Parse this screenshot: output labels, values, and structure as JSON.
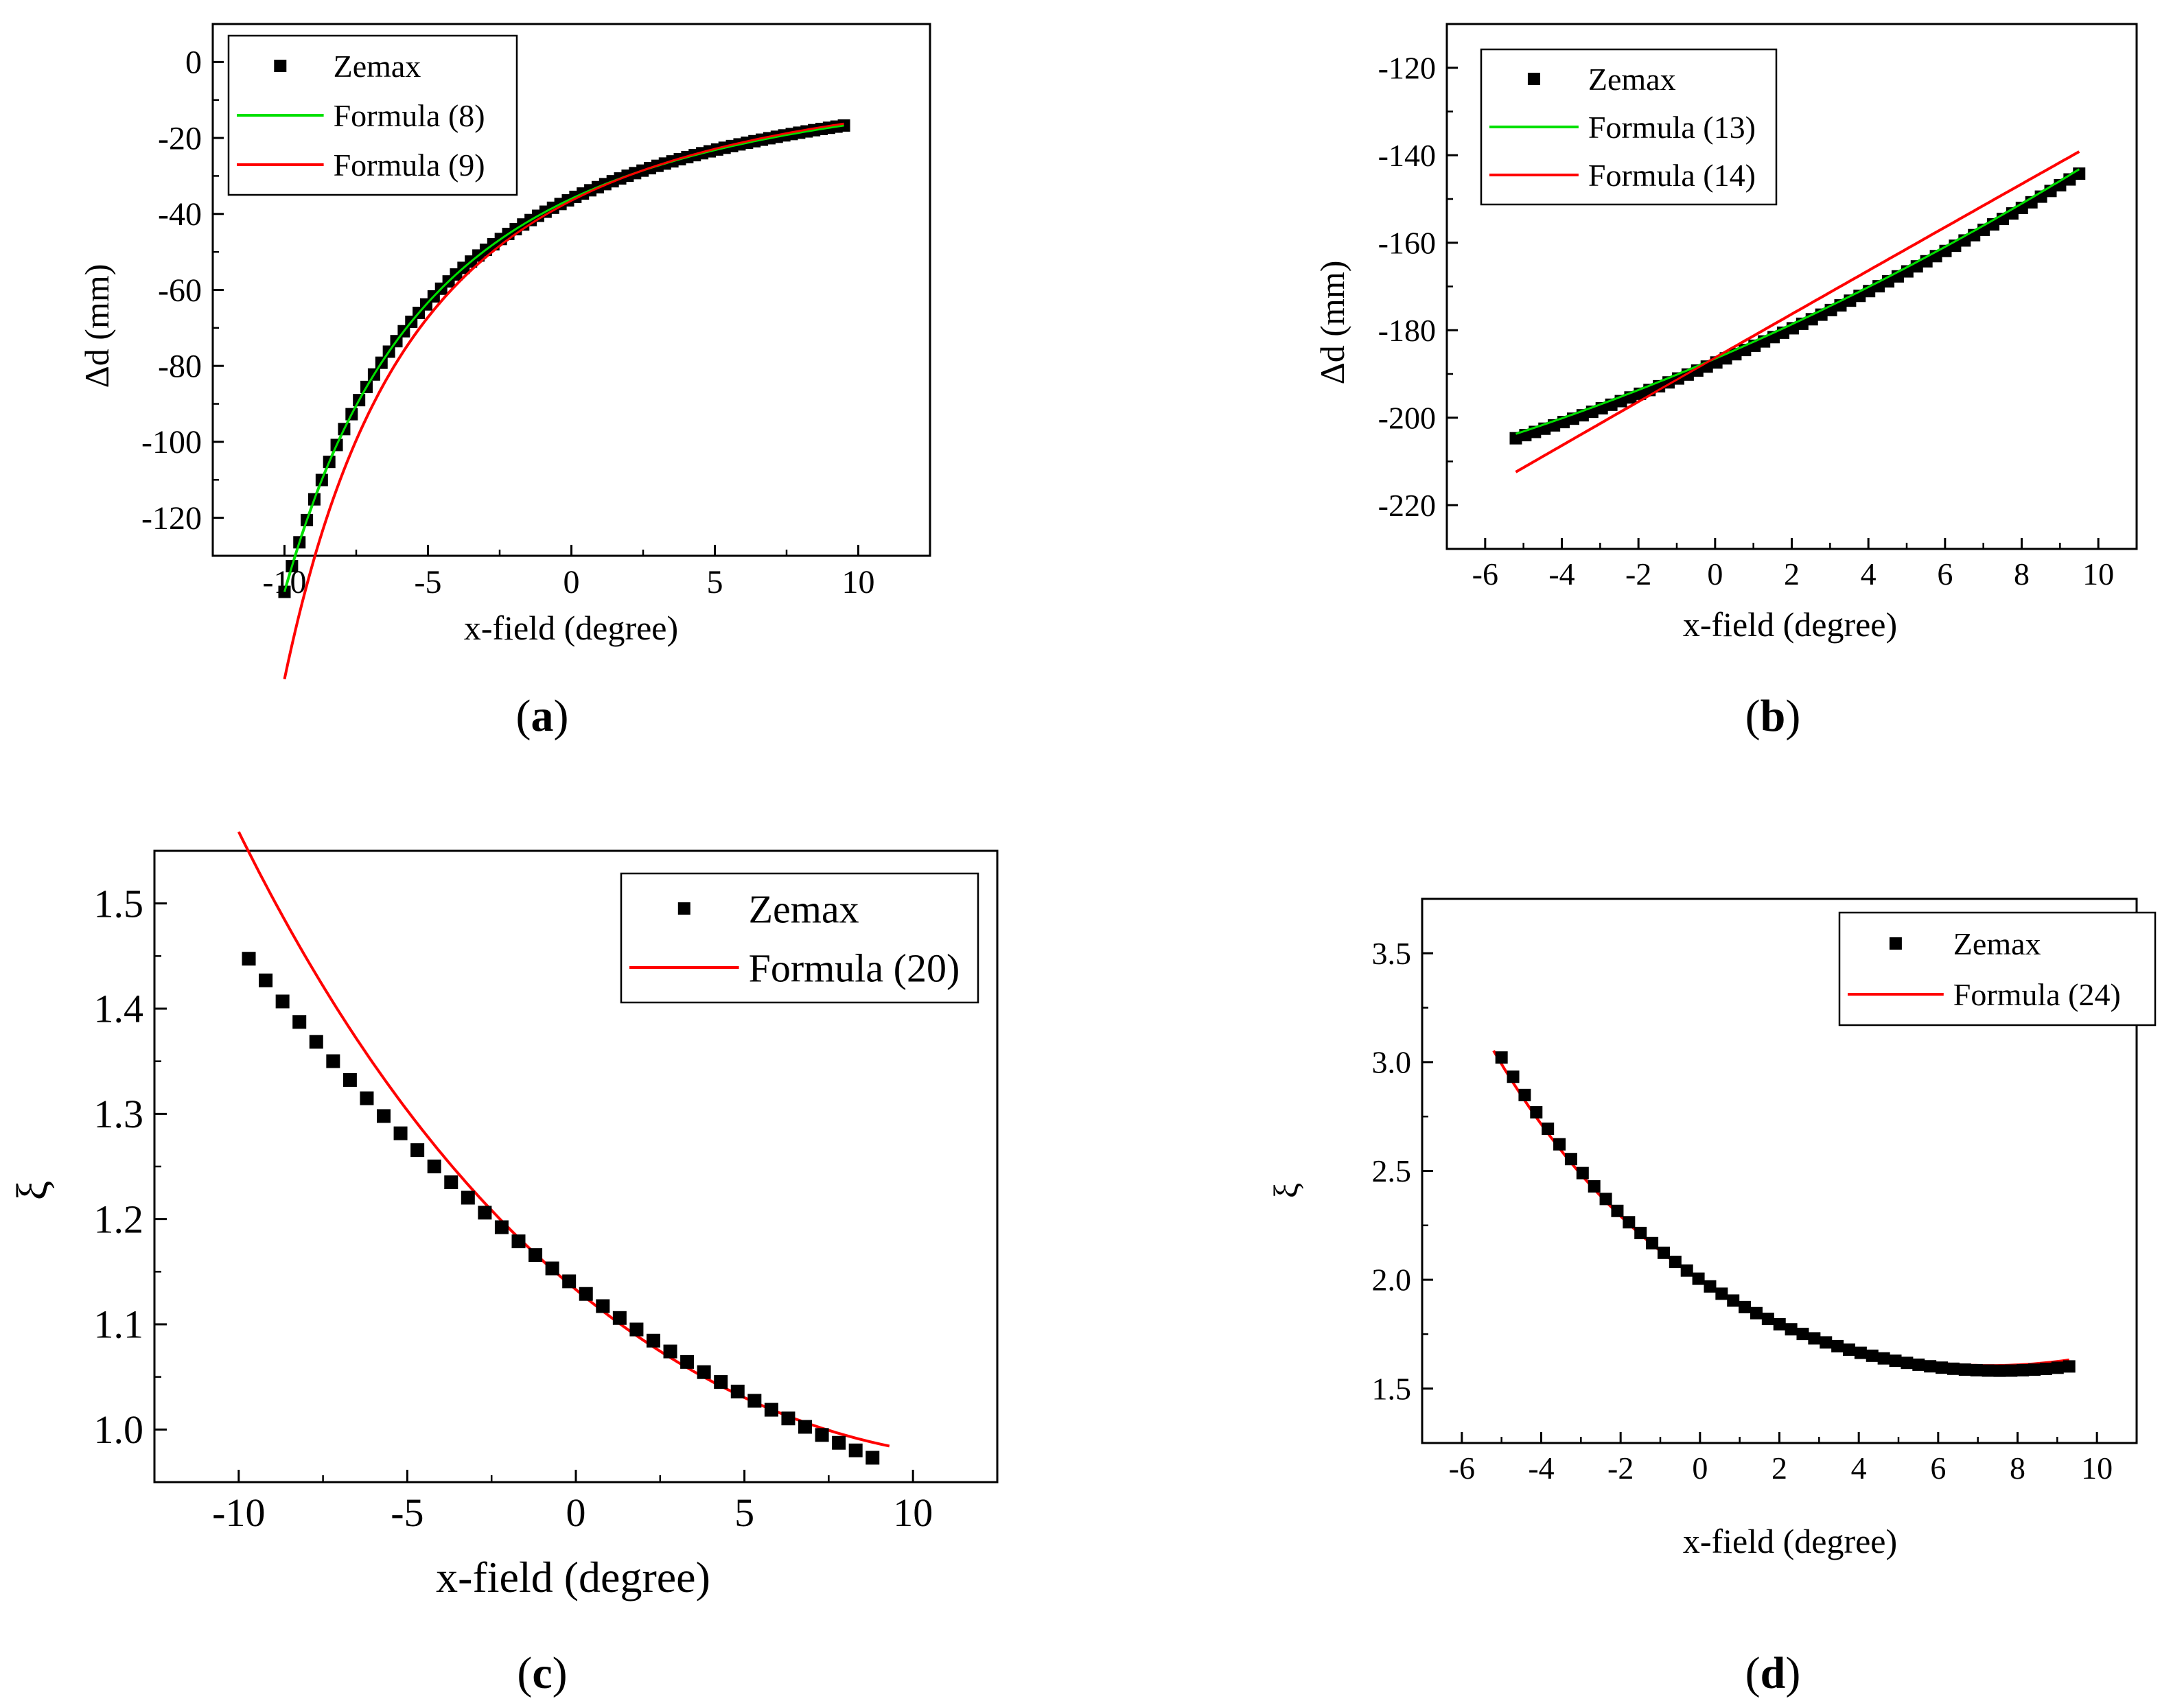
{
  "colors": {
    "zemax": "#000000",
    "green": "#00e000",
    "red": "#ff0000",
    "axis": "#000000"
  },
  "chart_data": [
    {
      "id": "a",
      "type": "scatter+line",
      "panel_label": "a",
      "xlabel": "x-field (degree)",
      "ylabel": "Δd (mm)",
      "xlim": [
        -12.5,
        12.5
      ],
      "ylim": [
        -130,
        10
      ],
      "xticks": [
        -10,
        -5,
        0,
        5,
        10
      ],
      "yticks": [
        0,
        -20,
        -40,
        -60,
        -80,
        -100,
        -120
      ],
      "legend": {
        "position": "top-left",
        "entries": [
          "Zemax",
          "Formula (8)",
          "Formula (9)"
        ]
      },
      "series": [
        {
          "name": "Zemax",
          "kind": "markers",
          "color": "#000000",
          "x_range": [
            -10,
            9.5
          ],
          "n": 76,
          "model": {
            "f": "pow",
            "a": -36.0,
            "b": 0.0492
          }
        },
        {
          "name": "Formula (8)",
          "kind": "line",
          "color": "#00e000",
          "x_range": [
            -10,
            9.5
          ],
          "model": {
            "f": "pow",
            "a": -36.0,
            "b": 0.0492
          }
        },
        {
          "name": "Formula (9)",
          "kind": "line",
          "color": "#ff0000",
          "x_range": [
            -10,
            9.5
          ],
          "model": {
            "f": "pow",
            "a": -36.5,
            "b": 0.0526
          }
        }
      ]
    },
    {
      "id": "b",
      "type": "scatter+line",
      "panel_label": "b",
      "xlabel": "x-field (degree)",
      "ylabel": "Δd (mm)",
      "xlim": [
        -7,
        11
      ],
      "ylim": [
        -230,
        -110
      ],
      "xticks": [
        -6,
        -4,
        -2,
        0,
        2,
        4,
        6,
        8,
        10
      ],
      "yticks": [
        -120,
        -140,
        -160,
        -180,
        -200,
        -220
      ],
      "legend": {
        "position": "top-left",
        "entries": [
          "Zemax",
          "Formula (13)",
          "Formula (14)"
        ]
      },
      "series": [
        {
          "name": "Zemax",
          "kind": "markers",
          "color": "#000000",
          "x_range": [
            -5.2,
            9.5
          ],
          "n": 60,
          "model": {
            "f": "quad",
            "a": -187.5,
            "b": 3.75,
            "c": 0.085
          }
        },
        {
          "name": "Formula (13)",
          "kind": "line",
          "color": "#00e000",
          "x_range": [
            -5.2,
            9.5
          ],
          "model": {
            "f": "quad",
            "a": -186.5,
            "b": 3.75,
            "c": 0.085
          }
        },
        {
          "name": "Formula (14)",
          "kind": "line",
          "color": "#ff0000",
          "x_range": [
            -5.2,
            9.5
          ],
          "model": {
            "f": "quad",
            "a": -186.3,
            "b": 5.0,
            "c": -0.0042
          }
        }
      ]
    },
    {
      "id": "c",
      "type": "scatter+line",
      "panel_label": "c",
      "xlabel": "x-field (degree)",
      "ylabel": "ξ",
      "xlim": [
        -12.5,
        12.5
      ],
      "ylim": [
        0.95,
        1.55
      ],
      "xticks": [
        -10,
        -5,
        0,
        5,
        10
      ],
      "yticks": [
        1.0,
        1.1,
        1.2,
        1.3,
        1.4,
        1.5
      ],
      "legend": {
        "position": "top-right",
        "entries": [
          "Zemax",
          "Formula (20)"
        ]
      },
      "series": [
        {
          "name": "Zemax",
          "kind": "markers",
          "color": "#000000",
          "x_range": [
            -9.7,
            8.8
          ],
          "n": 38,
          "model": {
            "f": "expp",
            "a": 1.136,
            "b": 0.0211,
            "c": 0.0004
          }
        },
        {
          "name": "Formula (20)",
          "kind": "line",
          "color": "#ff0000",
          "x_range": [
            -10,
            9.3
          ],
          "model": {
            "f": "expp",
            "a": 1.133,
            "b": 0.0235,
            "c": 0.0009
          }
        }
      ]
    },
    {
      "id": "d",
      "type": "scatter+line",
      "panel_label": "d",
      "xlabel": "x-field (degree)",
      "ylabel": "ξ",
      "xlim": [
        -7,
        11
      ],
      "ylim": [
        1.25,
        3.75
      ],
      "xticks": [
        -6,
        -4,
        -2,
        0,
        2,
        4,
        6,
        8,
        10
      ],
      "yticks": [
        1.5,
        2.0,
        2.5,
        3.0,
        3.5
      ],
      "legend": {
        "position": "top-right",
        "entries": [
          "Zemax",
          "Formula (24)"
        ]
      },
      "series": [
        {
          "name": "Zemax",
          "kind": "markers",
          "color": "#000000",
          "x_range": [
            -5.0,
            9.3
          ],
          "n": 50,
          "model": {
            "f": "expp",
            "a": 2.0,
            "b": 0.062,
            "c": 0.0041
          }
        },
        {
          "name": "Formula (24)",
          "kind": "line",
          "color": "#ff0000",
          "x_range": [
            -5.2,
            9.3
          ],
          "model": {
            "f": "expp",
            "a": 2.0,
            "b": 0.06,
            "c": 0.0041
          }
        }
      ]
    }
  ]
}
